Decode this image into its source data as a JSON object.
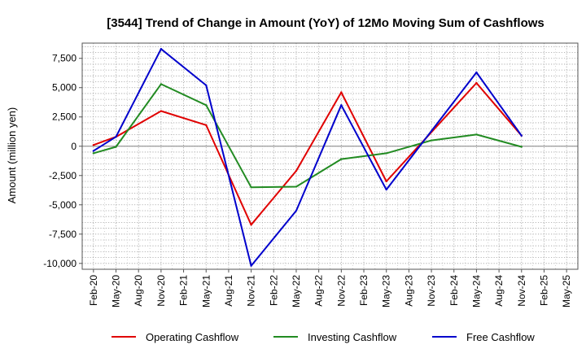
{
  "chart_data": {
    "type": "line",
    "title": "[3544]  Trend of Change in Amount (YoY) of 12Mo Moving Sum of Cashflows",
    "xlabel": "",
    "ylabel": "Amount (million yen)",
    "ylim": [
      -10500,
      8800
    ],
    "yticks": [
      7500,
      5000,
      2500,
      0,
      -2500,
      -5000,
      -7500,
      -10000
    ],
    "ytick_labels": [
      "7,500",
      "5,000",
      "2,500",
      "0",
      "-2,500",
      "-5,000",
      "-7,500",
      "-10,000"
    ],
    "categories": [
      "Feb-20",
      "May-20",
      "Aug-20",
      "Nov-20",
      "Feb-21",
      "May-21",
      "Aug-21",
      "Nov-21",
      "Feb-22",
      "May-22",
      "Aug-22",
      "Nov-22",
      "Feb-23",
      "May-23",
      "Aug-23",
      "Nov-23",
      "Feb-24",
      "May-24",
      "Aug-24",
      "Nov-24",
      "Feb-25",
      "May-25"
    ],
    "grid": true,
    "legend_position": "bottom",
    "series": [
      {
        "name": "Operating Cashflow",
        "color": "#e00000",
        "values": [
          100,
          800,
          null,
          3000,
          null,
          1800,
          null,
          -6700,
          null,
          -2100,
          null,
          4600,
          null,
          -3000,
          null,
          null,
          null,
          5400,
          null,
          900,
          null,
          null
        ]
      },
      {
        "name": "Investing Cashflow",
        "color": "#228b22",
        "values": [
          -600,
          -50,
          null,
          5300,
          null,
          3500,
          null,
          -3500,
          null,
          -3450,
          null,
          -1100,
          null,
          -600,
          null,
          500,
          null,
          1000,
          null,
          -50,
          null,
          null
        ]
      },
      {
        "name": "Free Cashflow",
        "color": "#0000cc",
        "values": [
          -400,
          800,
          null,
          8300,
          null,
          5200,
          null,
          -10200,
          null,
          -5500,
          null,
          3500,
          null,
          -3700,
          null,
          null,
          null,
          6300,
          null,
          900,
          null,
          null
        ]
      }
    ]
  }
}
